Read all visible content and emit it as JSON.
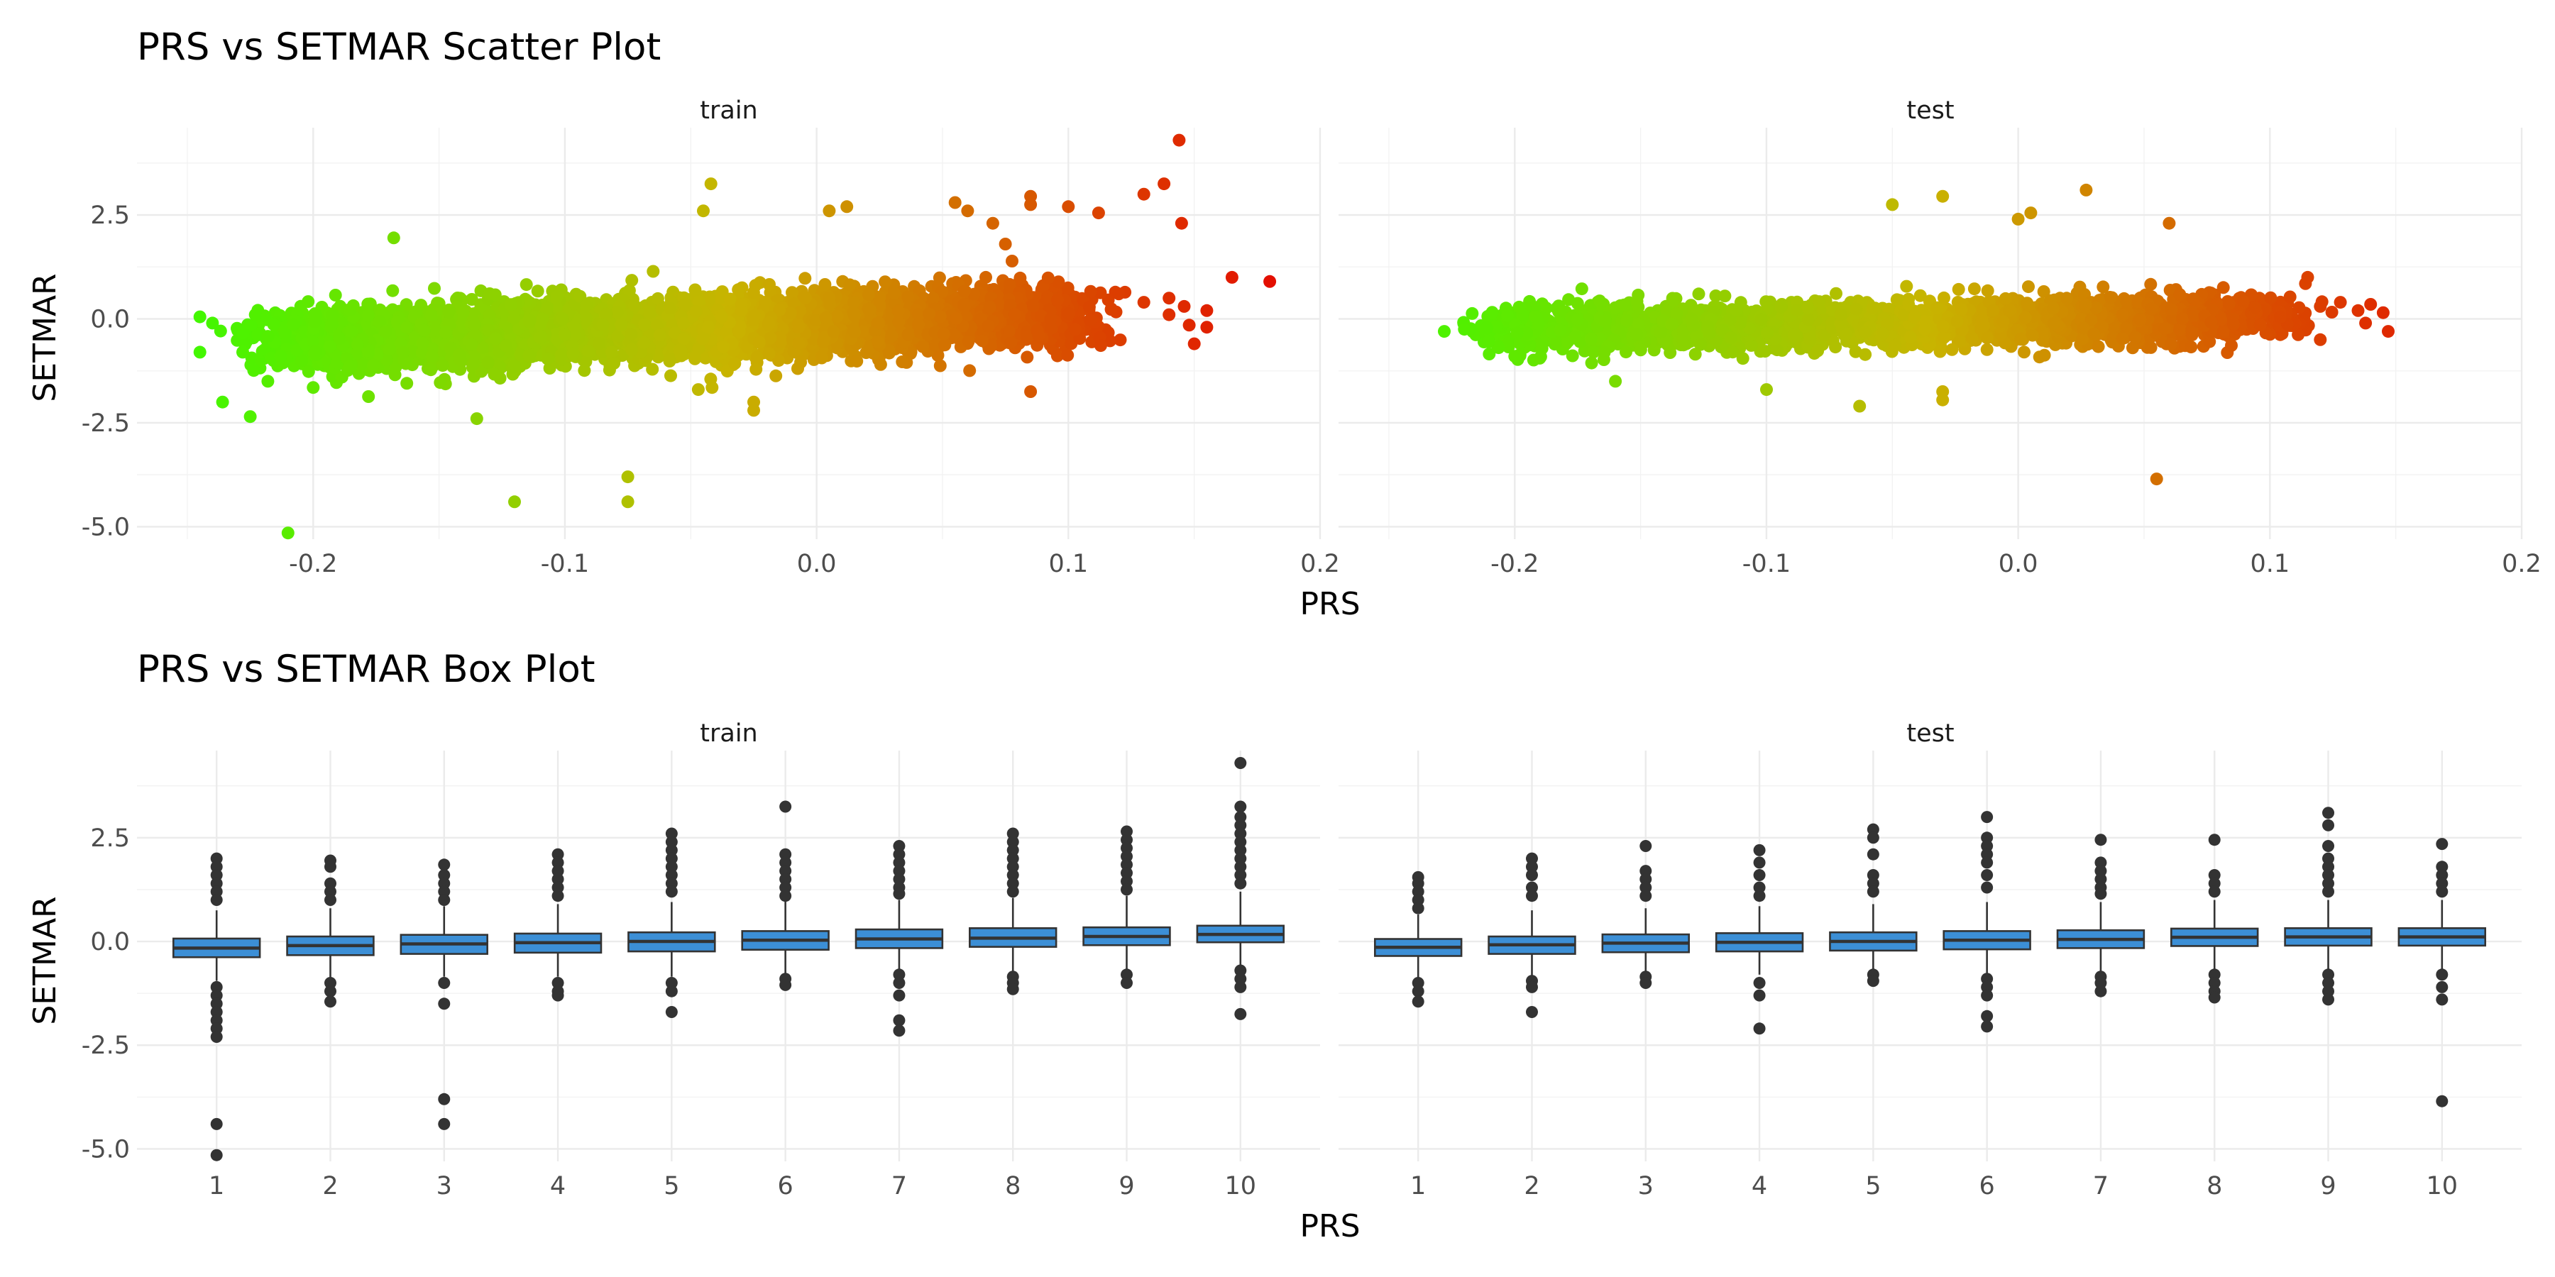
{
  "figure": {
    "scatter_title": "PRS vs SETMAR Scatter Plot",
    "box_title": "PRS vs SETMAR Box Plot",
    "xlabel": "PRS",
    "ylabel": "SETMAR",
    "panels": [
      "train",
      "test"
    ]
  },
  "colors": {
    "low": "#33ff00",
    "mid": "#c8b400",
    "high": "#e60000",
    "box_fill": "#3c8fd6",
    "box_stroke": "#333333",
    "point": "#333333"
  },
  "chart_data": [
    {
      "type": "scatter",
      "title": "PRS vs SETMAR Scatter Plot",
      "xlabel": "PRS",
      "ylabel": "SETMAR",
      "xlim": [
        -0.27,
        0.2
      ],
      "ylim": [
        -5.3,
        4.6
      ],
      "xticks": [
        -0.2,
        -0.1,
        0.0,
        0.1,
        0.2
      ],
      "xtick_labels": [
        "-0.2",
        "-0.1",
        "0.0",
        "0.1",
        "0.2"
      ],
      "yticks": [
        -5.0,
        -2.5,
        0.0,
        2.5
      ],
      "ytick_labels": [
        "-5.0",
        "-2.5",
        "0.0",
        "2.5"
      ],
      "grid": true,
      "color_scale": "PRS (green low → red high)",
      "panels": [
        {
          "name": "train",
          "cloud": {
            "x_min": -0.21,
            "x_max": 0.1,
            "y_center": -0.1,
            "slope": 2.0,
            "spread": 0.35
          },
          "points": [
            [
              -0.245,
              0.05
            ],
            [
              -0.245,
              -0.8
            ],
            [
              -0.24,
              -0.1
            ],
            [
              -0.236,
              -2.0
            ],
            [
              -0.228,
              -0.8
            ],
            [
              -0.225,
              -2.35
            ],
            [
              -0.223,
              0.1
            ],
            [
              -0.218,
              -1.5
            ],
            [
              -0.21,
              -5.15
            ],
            [
              -0.2,
              -1.65
            ],
            [
              -0.168,
              1.95
            ],
            [
              -0.135,
              -2.4
            ],
            [
              -0.12,
              -4.4
            ],
            [
              -0.075,
              -4.4
            ],
            [
              -0.075,
              -3.8
            ],
            [
              -0.042,
              3.25
            ],
            [
              -0.045,
              2.6
            ],
            [
              -0.025,
              -2.0
            ],
            [
              -0.025,
              -2.2
            ],
            [
              -0.047,
              -1.7
            ],
            [
              0.005,
              2.6
            ],
            [
              0.012,
              2.7
            ],
            [
              0.055,
              2.8
            ],
            [
              0.06,
              2.6
            ],
            [
              0.085,
              2.95
            ],
            [
              0.085,
              2.75
            ],
            [
              0.1,
              2.7
            ],
            [
              0.07,
              2.3
            ],
            [
              0.075,
              1.8
            ],
            [
              0.085,
              -1.75
            ],
            [
              0.112,
              2.55
            ],
            [
              0.13,
              3.0
            ],
            [
              0.138,
              3.25
            ],
            [
              0.144,
              4.3
            ],
            [
              0.145,
              2.3
            ],
            [
              0.12,
              0.6
            ],
            [
              0.13,
              0.4
            ],
            [
              0.14,
              0.5
            ],
            [
              0.146,
              0.3
            ],
            [
              0.148,
              -0.15
            ],
            [
              0.15,
              -0.6
            ],
            [
              0.155,
              0.2
            ],
            [
              0.155,
              -0.2
            ],
            [
              0.14,
              0.1
            ],
            [
              0.165,
              1.0
            ],
            [
              0.18,
              0.9
            ]
          ]
        },
        {
          "name": "test",
          "cloud": {
            "x_min": -0.2,
            "x_max": 0.1,
            "y_center": -0.05,
            "slope": 1.0,
            "spread": 0.28
          },
          "points": [
            [
              -0.228,
              -0.3
            ],
            [
              -0.22,
              -0.25
            ],
            [
              -0.2,
              -0.9
            ],
            [
              -0.16,
              -1.5
            ],
            [
              -0.1,
              -1.7
            ],
            [
              -0.063,
              -2.1
            ],
            [
              -0.03,
              -1.75
            ],
            [
              -0.03,
              -1.95
            ],
            [
              -0.05,
              2.75
            ],
            [
              -0.03,
              2.95
            ],
            [
              0.0,
              2.4
            ],
            [
              0.005,
              2.55
            ],
            [
              0.027,
              3.1
            ],
            [
              0.055,
              -3.85
            ],
            [
              0.06,
              2.3
            ],
            [
              0.115,
              1.0
            ],
            [
              0.12,
              0.3
            ],
            [
              0.128,
              0.4
            ],
            [
              0.135,
              0.2
            ],
            [
              0.138,
              -0.1
            ],
            [
              0.14,
              0.35
            ],
            [
              0.145,
              0.15
            ],
            [
              0.147,
              -0.3
            ],
            [
              0.12,
              -0.5
            ]
          ]
        }
      ]
    },
    {
      "type": "box",
      "title": "PRS vs SETMAR Box Plot",
      "xlabel": "PRS",
      "ylabel": "SETMAR",
      "categories": [
        "1",
        "2",
        "3",
        "4",
        "5",
        "6",
        "7",
        "8",
        "9",
        "10"
      ],
      "ylim": [
        -5.3,
        4.6
      ],
      "yticks": [
        -5.0,
        -2.5,
        0.0,
        2.5
      ],
      "ytick_labels": [
        "-5.0",
        "-2.5",
        "0.0",
        "2.5"
      ],
      "panels": [
        {
          "name": "train",
          "boxes": [
            {
              "q1": -0.38,
              "median": -0.16,
              "q3": 0.07,
              "lo": -0.95,
              "hi": 0.75,
              "outliers": [
                2.0,
                1.8,
                1.6,
                1.4,
                1.2,
                1.0,
                -1.1,
                -1.3,
                -1.5,
                -1.7,
                -1.9,
                -2.1,
                -2.3,
                -4.4,
                -5.15
              ]
            },
            {
              "q1": -0.33,
              "median": -0.1,
              "q3": 0.12,
              "lo": -0.9,
              "hi": 0.8,
              "outliers": [
                1.95,
                1.8,
                1.4,
                1.2,
                1.0,
                -1.0,
                -1.2,
                -1.45
              ]
            },
            {
              "q1": -0.3,
              "median": -0.06,
              "q3": 0.16,
              "lo": -0.85,
              "hi": 0.85,
              "outliers": [
                1.85,
                1.6,
                1.4,
                1.2,
                1.0,
                -1.0,
                -1.5,
                -3.8,
                -4.4
              ]
            },
            {
              "q1": -0.27,
              "median": -0.03,
              "q3": 0.19,
              "lo": -0.85,
              "hi": 0.9,
              "outliers": [
                2.1,
                1.9,
                1.7,
                1.5,
                1.3,
                1.1,
                -1.0,
                -1.2,
                -1.3
              ]
            },
            {
              "q1": -0.24,
              "median": 0.0,
              "q3": 0.22,
              "lo": -0.85,
              "hi": 0.95,
              "outliers": [
                2.6,
                2.4,
                2.2,
                2.0,
                1.8,
                1.6,
                1.4,
                1.2,
                -1.0,
                -1.2,
                -1.7
              ]
            },
            {
              "q1": -0.2,
              "median": 0.03,
              "q3": 0.25,
              "lo": -0.8,
              "hi": 1.0,
              "outliers": [
                3.25,
                2.1,
                1.9,
                1.7,
                1.5,
                1.3,
                1.1,
                -0.9,
                -1.05
              ]
            },
            {
              "q1": -0.16,
              "median": 0.06,
              "q3": 0.29,
              "lo": -0.75,
              "hi": 1.0,
              "outliers": [
                2.3,
                2.1,
                1.9,
                1.7,
                1.5,
                1.3,
                1.15,
                -0.8,
                -1.0,
                -1.3,
                -1.9,
                -2.15
              ]
            },
            {
              "q1": -0.13,
              "median": 0.08,
              "q3": 0.32,
              "lo": -0.75,
              "hi": 1.05,
              "outliers": [
                2.6,
                2.4,
                2.2,
                2.0,
                1.8,
                1.6,
                1.4,
                1.2,
                -0.85,
                -1.0,
                -1.15
              ]
            },
            {
              "q1": -0.09,
              "median": 0.12,
              "q3": 0.34,
              "lo": -0.7,
              "hi": 1.1,
              "outliers": [
                2.65,
                2.45,
                2.25,
                2.05,
                1.85,
                1.65,
                1.45,
                1.25,
                -0.8,
                -1.0
              ]
            },
            {
              "q1": -0.02,
              "median": 0.17,
              "q3": 0.38,
              "lo": -0.6,
              "hi": 1.2,
              "outliers": [
                4.3,
                3.25,
                3.0,
                2.8,
                2.6,
                2.4,
                2.2,
                2.0,
                1.8,
                1.6,
                1.4,
                -0.7,
                -0.9,
                -1.1,
                -1.75
              ]
            }
          ]
        },
        {
          "name": "test",
          "boxes": [
            {
              "q1": -0.35,
              "median": -0.14,
              "q3": 0.06,
              "lo": -0.9,
              "hi": 0.65,
              "outliers": [
                1.55,
                1.4,
                1.2,
                1.0,
                0.8,
                -1.0,
                -1.2,
                -1.45
              ]
            },
            {
              "q1": -0.3,
              "median": -0.08,
              "q3": 0.12,
              "lo": -0.85,
              "hi": 0.75,
              "outliers": [
                2.0,
                1.8,
                1.6,
                1.3,
                1.1,
                -0.95,
                -1.1,
                -1.7
              ]
            },
            {
              "q1": -0.26,
              "median": -0.04,
              "q3": 0.17,
              "lo": -0.8,
              "hi": 0.8,
              "outliers": [
                2.3,
                1.7,
                1.5,
                1.3,
                1.1,
                -0.85,
                -1.0
              ]
            },
            {
              "q1": -0.24,
              "median": -0.02,
              "q3": 0.2,
              "lo": -0.8,
              "hi": 0.85,
              "outliers": [
                2.2,
                1.9,
                1.6,
                1.3,
                1.1,
                -1.0,
                -1.3,
                -2.1
              ]
            },
            {
              "q1": -0.22,
              "median": 0.0,
              "q3": 0.22,
              "lo": -0.8,
              "hi": 0.9,
              "outliers": [
                2.7,
                2.5,
                2.1,
                1.6,
                1.4,
                1.2,
                -0.8,
                -0.95
              ]
            },
            {
              "q1": -0.19,
              "median": 0.03,
              "q3": 0.25,
              "lo": -0.8,
              "hi": 0.95,
              "outliers": [
                3.0,
                2.5,
                2.3,
                2.1,
                1.9,
                1.6,
                1.3,
                -0.9,
                -1.1,
                -1.3,
                -1.8,
                -2.05
              ]
            },
            {
              "q1": -0.16,
              "median": 0.05,
              "q3": 0.27,
              "lo": -0.75,
              "hi": 0.95,
              "outliers": [
                2.45,
                1.9,
                1.7,
                1.5,
                1.3,
                1.15,
                -0.85,
                -1.0,
                -1.2
              ]
            },
            {
              "q1": -0.11,
              "median": 0.1,
              "q3": 0.31,
              "lo": -0.7,
              "hi": 1.0,
              "outliers": [
                2.45,
                1.6,
                1.4,
                1.2,
                -0.8,
                -1.0,
                -1.2,
                -1.35
              ]
            },
            {
              "q1": -0.1,
              "median": 0.11,
              "q3": 0.32,
              "lo": -0.7,
              "hi": 1.0,
              "outliers": [
                3.1,
                2.8,
                2.3,
                2.0,
                1.8,
                1.6,
                1.4,
                1.2,
                -0.8,
                -1.0,
                -1.2,
                -1.4
              ]
            },
            {
              "q1": -0.1,
              "median": 0.11,
              "q3": 0.32,
              "lo": -0.7,
              "hi": 1.0,
              "outliers": [
                2.35,
                1.8,
                1.6,
                1.4,
                1.2,
                -0.8,
                -1.1,
                -1.4,
                -3.85
              ]
            }
          ]
        }
      ]
    }
  ]
}
